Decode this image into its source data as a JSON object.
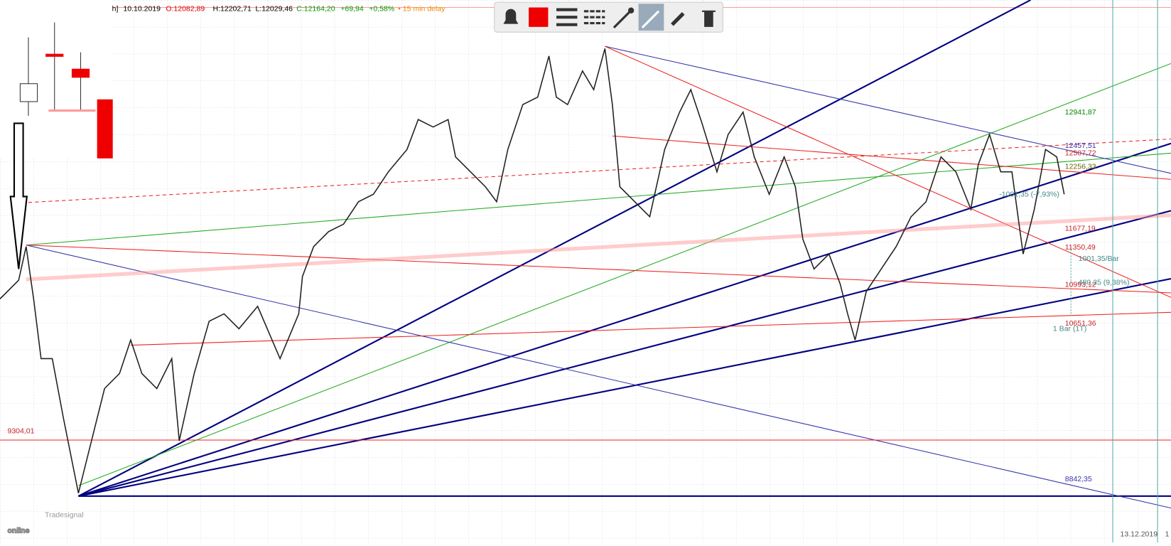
{
  "header": {
    "symbol_fragment": "h]",
    "date": "10.10.2019",
    "open": "O:12082,89",
    "high": "H:12202,71",
    "low": "L:12029,46",
    "close": "C:12164,20",
    "change": "+69,94",
    "change_pct": "+0,58%",
    "delay": "• 15 min delay"
  },
  "levels": [
    "12941,87",
    "12457,51",
    "12507,72",
    "12256,33",
    "11677,19",
    "11350,49",
    "10993,12",
    "10651,36",
    "9304,01",
    "8842,35"
  ],
  "annotations": [
    "-1001,35 (-7,93%)",
    "1001,35/Bar",
    "480,35 (9,38%)",
    "1 Bar (1T)"
  ],
  "footer": {
    "date": "13.12.2019",
    "marker": "1"
  },
  "logo": {
    "brand": "Tradesignal",
    "product": "online"
  }
}
